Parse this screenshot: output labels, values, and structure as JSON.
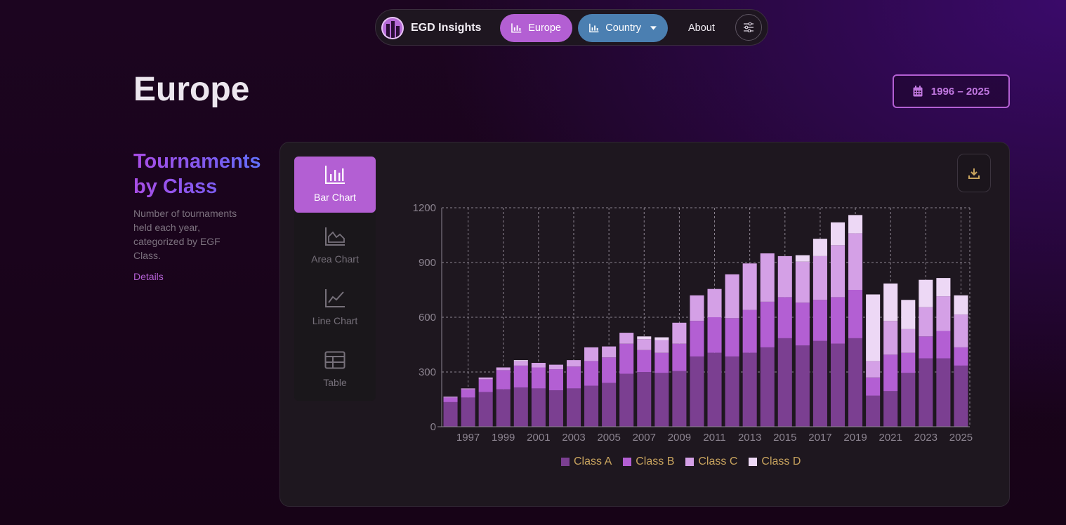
{
  "nav": {
    "brand": "EGD Insights",
    "europe_label": "Europe",
    "country_label": "Country",
    "about_label": "About",
    "icons": {
      "brand": "bar-chart-logo-icon",
      "europe": "bar-chart-icon",
      "country": "bar-chart-icon",
      "dropdown": "caret-down-icon",
      "settings": "sliders-icon"
    }
  },
  "page": {
    "title": "Europe",
    "date_range": "1996 – 2025"
  },
  "section": {
    "title": "Tournaments by Class",
    "description": "Number of tournaments held each year, categorized by EGF Class.",
    "details_link": "Details"
  },
  "chart_tabs": [
    {
      "label": "Bar Chart",
      "icon": "bar-chart-icon",
      "active": true
    },
    {
      "label": "Area Chart",
      "icon": "area-chart-icon",
      "active": false
    },
    {
      "label": "Line Chart",
      "icon": "line-chart-icon",
      "active": false
    },
    {
      "label": "Table",
      "icon": "table-icon",
      "active": false
    }
  ],
  "colors": {
    "accent": "#b35fd3",
    "country": "#4b7fb1",
    "legend_text": "#c9a45e",
    "class_a": "#7b3f91",
    "class_b": "#b35fd3",
    "class_c": "#d4a0e6",
    "class_d": "#edd8f5"
  },
  "chart_data": {
    "type": "bar",
    "stacked": true,
    "categories": [
      "1996",
      "1997",
      "1998",
      "1999",
      "2000",
      "2001",
      "2002",
      "2003",
      "2004",
      "2005",
      "2006",
      "2007",
      "2008",
      "2009",
      "2010",
      "2011",
      "2012",
      "2013",
      "2014",
      "2015",
      "2016",
      "2017",
      "2018",
      "2019",
      "2020",
      "2021",
      "2022",
      "2023",
      "2024",
      "2025"
    ],
    "x_tick_labels": [
      "1997",
      "1999",
      "2001",
      "2003",
      "2005",
      "2007",
      "2009",
      "2011",
      "2013",
      "2015",
      "2017",
      "2019",
      "2021",
      "2023",
      "2025"
    ],
    "y_ticks": [
      0,
      300,
      600,
      900,
      1200
    ],
    "ylim": [
      0,
      1200
    ],
    "grid": true,
    "legend_position": "bottom",
    "series": [
      {
        "name": "Class A",
        "color": "#7b3f91",
        "values": [
          135,
          160,
          190,
          205,
          215,
          210,
          200,
          210,
          225,
          240,
          290,
          300,
          295,
          305,
          385,
          405,
          385,
          405,
          435,
          485,
          445,
          470,
          455,
          485,
          170,
          195,
          295,
          375,
          375,
          335
        ]
      },
      {
        "name": "Class B",
        "color": "#b35fd3",
        "values": [
          25,
          45,
          70,
          105,
          120,
          115,
          115,
          120,
          135,
          140,
          165,
          120,
          110,
          150,
          195,
          195,
          210,
          235,
          250,
          225,
          235,
          225,
          255,
          265,
          100,
          200,
          110,
          120,
          150,
          100
        ]
      },
      {
        "name": "Class C",
        "color": "#d4a0e6",
        "values": [
          5,
          5,
          10,
          15,
          25,
          25,
          25,
          35,
          75,
          60,
          60,
          60,
          70,
          115,
          140,
          155,
          240,
          255,
          265,
          225,
          225,
          240,
          285,
          310,
          90,
          185,
          130,
          160,
          190,
          180
        ]
      },
      {
        "name": "Class D",
        "color": "#edd8f5",
        "values": [
          0,
          0,
          0,
          0,
          5,
          0,
          0,
          0,
          0,
          0,
          0,
          15,
          15,
          0,
          0,
          0,
          0,
          0,
          0,
          0,
          35,
          95,
          125,
          100,
          365,
          205,
          160,
          150,
          100,
          105
        ]
      }
    ]
  }
}
